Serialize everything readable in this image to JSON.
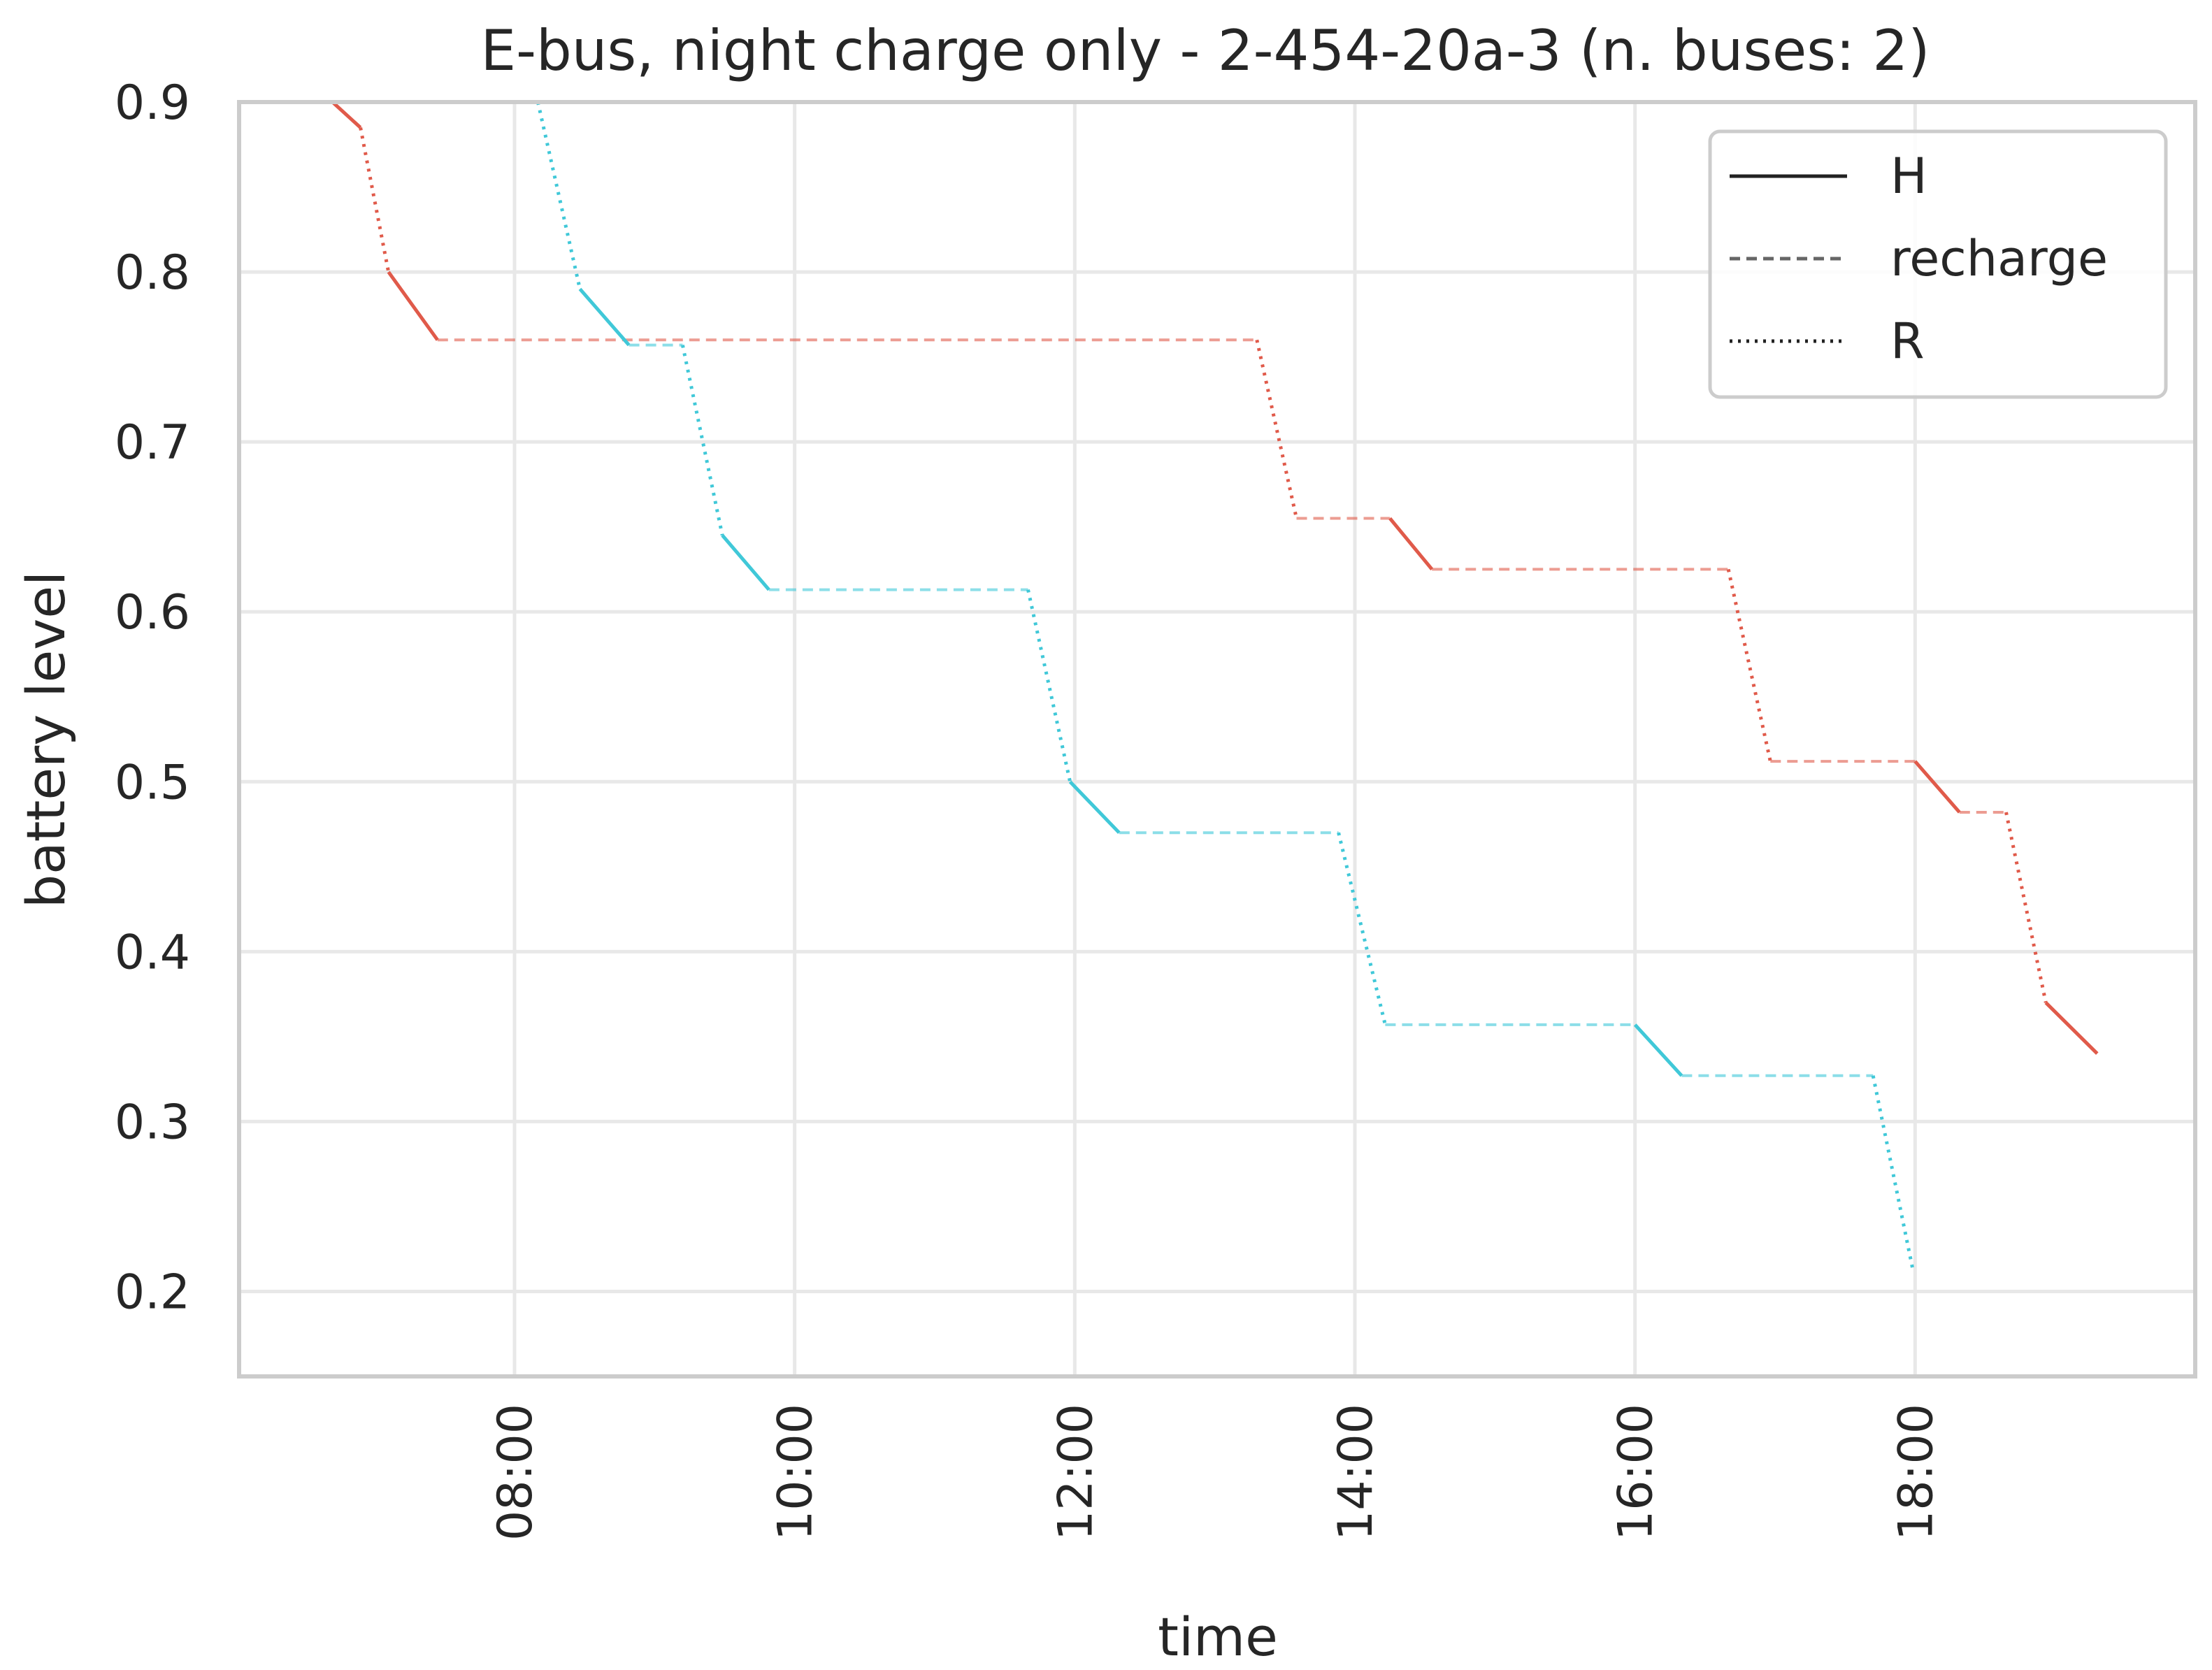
{
  "chart_data": {
    "type": "line",
    "title": "E-bus, night charge only - 2-454-20a-3 (n. buses: 2)",
    "xlabel": "time",
    "ylabel": "battery level",
    "x_unit": "clock time (HH:MM)",
    "xlim": [
      "06:02",
      "20:00"
    ],
    "ylim": [
      0.15,
      0.9
    ],
    "x_ticks": [
      "08:00",
      "10:00",
      "12:00",
      "14:00",
      "16:00",
      "18:00"
    ],
    "y_ticks": [
      "0.2",
      "0.3",
      "0.4",
      "0.5",
      "0.6",
      "0.7",
      "0.8",
      "0.9"
    ],
    "grid": true,
    "legend": {
      "position": "top-right",
      "entries": [
        {
          "label": "H",
          "style": "solid"
        },
        {
          "label": "recharge",
          "style": "dashed"
        },
        {
          "label": "R",
          "style": "dotted"
        }
      ]
    },
    "colors": {
      "bus_1": "#e05a4a",
      "bus_2": "#40c8d8"
    },
    "series": [
      {
        "color": "#e05a4a",
        "segments": [
          {
            "style": "solid",
            "points": [
              [
                "06:42",
                0.9
              ],
              [
                "06:54",
                0.885
              ]
            ]
          },
          {
            "style": "dotted",
            "points": [
              [
                "06:54",
                0.885
              ],
              [
                "07:06",
                0.8
              ]
            ]
          },
          {
            "style": "solid",
            "points": [
              [
                "07:06",
                0.8
              ],
              [
                "07:27",
                0.76
              ]
            ]
          },
          {
            "style": "dashed",
            "points": [
              [
                "07:27",
                0.76
              ],
              [
                "13:18",
                0.76
              ]
            ]
          },
          {
            "style": "dotted",
            "points": [
              [
                "13:18",
                0.76
              ],
              [
                "13:35",
                0.655
              ]
            ]
          },
          {
            "style": "dashed",
            "points": [
              [
                "13:35",
                0.655
              ],
              [
                "14:15",
                0.655
              ]
            ]
          },
          {
            "style": "solid",
            "points": [
              [
                "14:15",
                0.655
              ],
              [
                "14:33",
                0.625
              ]
            ]
          },
          {
            "style": "dashed",
            "points": [
              [
                "14:33",
                0.625
              ],
              [
                "16:40",
                0.625
              ]
            ]
          },
          {
            "style": "dotted",
            "points": [
              [
                "16:40",
                0.625
              ],
              [
                "16:58",
                0.512
              ]
            ]
          },
          {
            "style": "dashed",
            "points": [
              [
                "16:58",
                0.512
              ],
              [
                "18:00",
                0.512
              ]
            ]
          },
          {
            "style": "solid",
            "points": [
              [
                "18:00",
                0.512
              ],
              [
                "18:19",
                0.482
              ]
            ]
          },
          {
            "style": "dashed",
            "points": [
              [
                "18:19",
                0.482
              ],
              [
                "18:39",
                0.482
              ]
            ]
          },
          {
            "style": "dotted",
            "points": [
              [
                "18:39",
                0.482
              ],
              [
                "18:56",
                0.37
              ]
            ]
          },
          {
            "style": "solid",
            "points": [
              [
                "18:56",
                0.37
              ],
              [
                "19:18",
                0.34
              ]
            ]
          }
        ]
      },
      {
        "color": "#40c8d8",
        "segments": [
          {
            "style": "dotted",
            "points": [
              [
                "08:10",
                0.9
              ],
              [
                "08:28",
                0.79
              ]
            ]
          },
          {
            "style": "solid",
            "points": [
              [
                "08:28",
                0.79
              ],
              [
                "08:49",
                0.757
              ]
            ]
          },
          {
            "style": "dashed",
            "points": [
              [
                "08:49",
                0.757
              ],
              [
                "09:12",
                0.757
              ]
            ]
          },
          {
            "style": "dotted",
            "points": [
              [
                "09:12",
                0.757
              ],
              [
                "09:29",
                0.645
              ]
            ]
          },
          {
            "style": "solid",
            "points": [
              [
                "09:29",
                0.645
              ],
              [
                "09:49",
                0.613
              ]
            ]
          },
          {
            "style": "dashed",
            "points": [
              [
                "09:49",
                0.613
              ],
              [
                "11:40",
                0.613
              ]
            ]
          },
          {
            "style": "dotted",
            "points": [
              [
                "11:40",
                0.613
              ],
              [
                "11:58",
                0.5
              ]
            ]
          },
          {
            "style": "solid",
            "points": [
              [
                "11:58",
                0.5
              ],
              [
                "12:19",
                0.47
              ]
            ]
          },
          {
            "style": "dashed",
            "points": [
              [
                "12:19",
                0.47
              ],
              [
                "13:53",
                0.47
              ]
            ]
          },
          {
            "style": "dotted",
            "points": [
              [
                "13:53",
                0.47
              ],
              [
                "14:13",
                0.357
              ]
            ]
          },
          {
            "style": "dashed",
            "points": [
              [
                "14:13",
                0.357
              ],
              [
                "16:00",
                0.357
              ]
            ]
          },
          {
            "style": "solid",
            "points": [
              [
                "16:00",
                0.357
              ],
              [
                "16:20",
                0.327
              ]
            ]
          },
          {
            "style": "dashed",
            "points": [
              [
                "16:20",
                0.327
              ],
              [
                "17:42",
                0.327
              ]
            ]
          },
          {
            "style": "dotted",
            "points": [
              [
                "17:42",
                0.327
              ],
              [
                "17:59",
                0.213
              ]
            ]
          }
        ]
      }
    ]
  }
}
